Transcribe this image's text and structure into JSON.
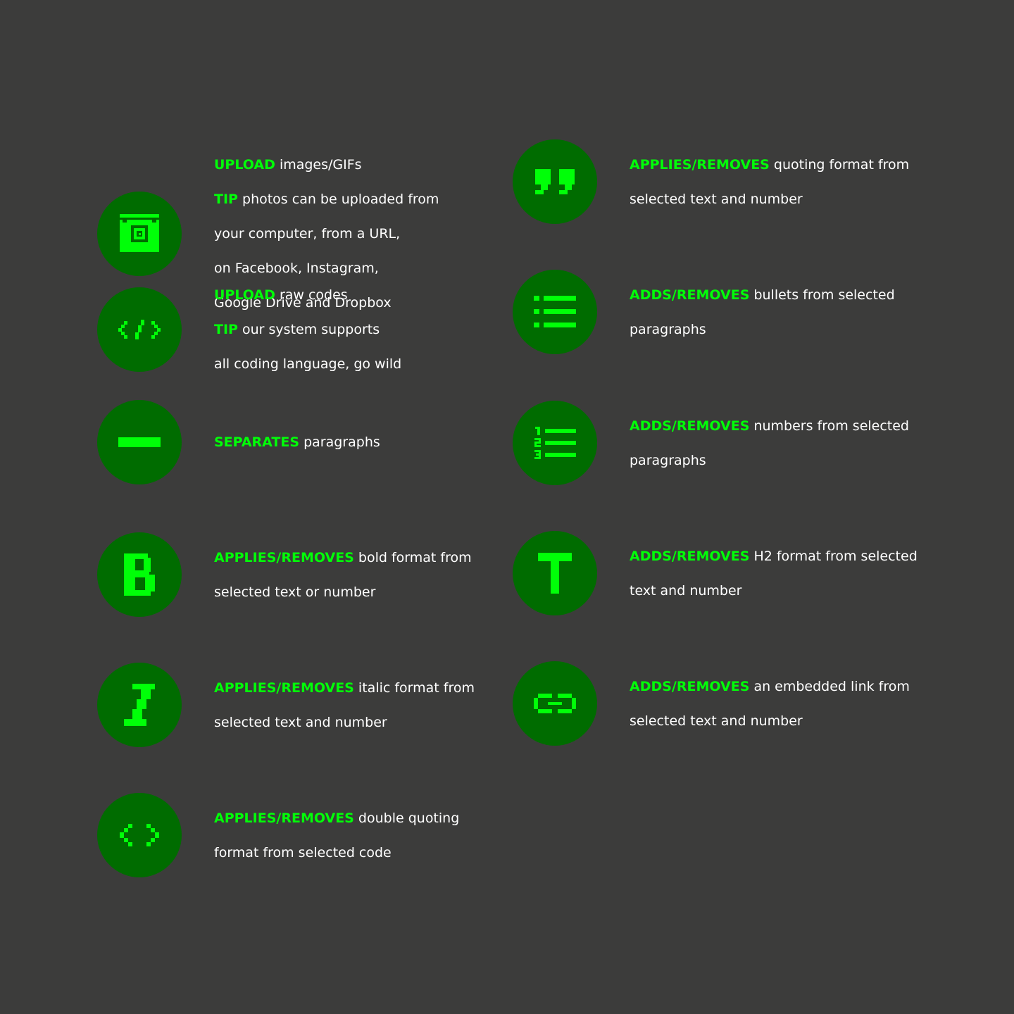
{
  "colors": {
    "background": "#3c3c3b",
    "icon_circle": "#006c00",
    "accent": "#00ff08",
    "text": "#ffffff"
  },
  "items": [
    {
      "icon": "image-upload-icon",
      "lines": [
        {
          "kw": "UPLOAD",
          "text": " images/GIFs"
        },
        {
          "kw": "TIP",
          "text": " photos can be uploaded from"
        },
        {
          "kw": "",
          "text": "your computer, from a URL,"
        },
        {
          "kw": "",
          "text": "on Facebook, Instagram,"
        },
        {
          "kw": "",
          "text": "Google Drive and Dropbox"
        }
      ]
    },
    {
      "icon": "quote-icon",
      "lines": [
        {
          "kw": "APPLIES/REMOVES",
          "text": " quoting format from"
        },
        {
          "kw": "",
          "text": "selected text and number"
        }
      ]
    },
    {
      "icon": "code-upload-icon",
      "lines": [
        {
          "kw": "UPLOAD",
          "text": " raw codes"
        },
        {
          "kw": "TIP",
          "text": " our system supports"
        },
        {
          "kw": "",
          "text": "all coding language, go wild"
        }
      ]
    },
    {
      "icon": "bullet-list-icon",
      "lines": [
        {
          "kw": "ADDS/REMOVES",
          "text": " bullets from selected"
        },
        {
          "kw": "",
          "text": "paragraphs"
        }
      ]
    },
    {
      "icon": "separator-icon",
      "lines": [
        {
          "kw": "SEPARATES",
          "text": " paragraphs"
        }
      ]
    },
    {
      "icon": "numbered-list-icon",
      "lines": [
        {
          "kw": "ADDS/REMOVES",
          "text": " numbers from selected"
        },
        {
          "kw": "",
          "text": "paragraphs"
        }
      ]
    },
    {
      "icon": "bold-icon",
      "lines": [
        {
          "kw": "APPLIES/REMOVES",
          "text": " bold format from"
        },
        {
          "kw": "",
          "text": "selected text or number"
        }
      ]
    },
    {
      "icon": "heading-icon",
      "lines": [
        {
          "kw": "ADDS/REMOVES",
          "text": " H2 format from selected"
        },
        {
          "kw": "",
          "text": "text and number"
        }
      ]
    },
    {
      "icon": "italic-icon",
      "lines": [
        {
          "kw": "APPLIES/REMOVES",
          "text": " italic format from"
        },
        {
          "kw": "",
          "text": "selected text and number"
        }
      ]
    },
    {
      "icon": "link-icon",
      "lines": [
        {
          "kw": "ADDS/REMOVES",
          "text": " an embedded link from"
        },
        {
          "kw": "",
          "text": "selected text and number"
        }
      ]
    },
    {
      "icon": "code-inline-icon",
      "lines": [
        {
          "kw": "APPLIES/REMOVES",
          "text": " double quoting"
        },
        {
          "kw": "",
          "text": "format from selected code"
        }
      ]
    }
  ]
}
